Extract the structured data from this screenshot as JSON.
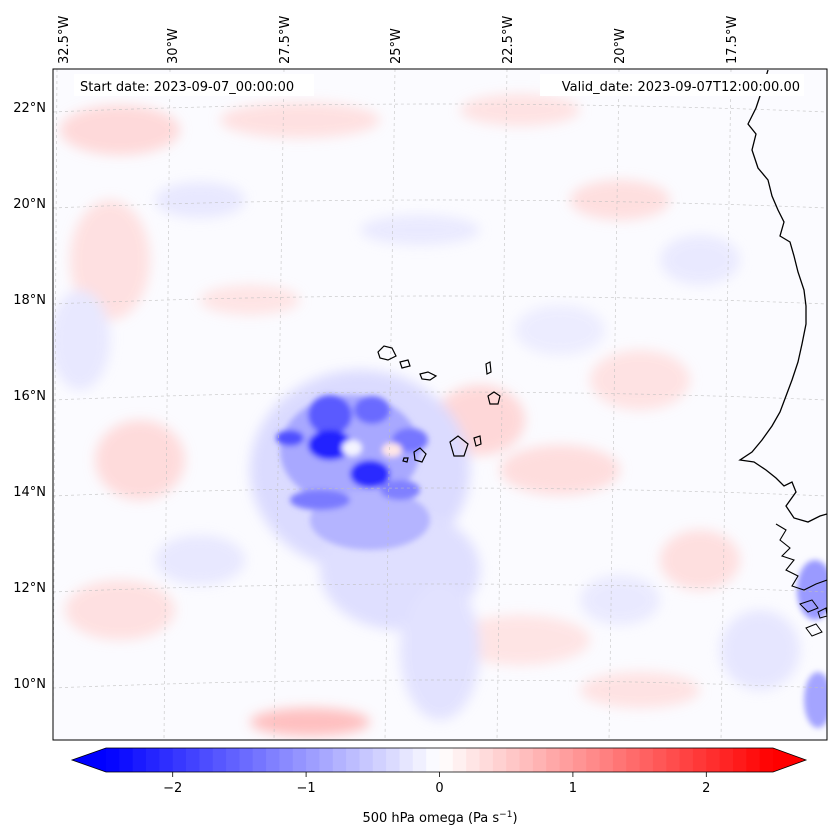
{
  "map": {
    "start_date": "Start date: 2023-09-07_00:00:00",
    "valid_date": "Valid_date: 2023-09-07T12:00:00.00",
    "lon_labels": [
      "32.5°W",
      "30°W",
      "27.5°W",
      "25°W",
      "22.5°W",
      "20°W",
      "17.5°W"
    ],
    "lat_labels": [
      "22°N",
      "20°N",
      "18°N",
      "16°N",
      "14°N",
      "12°N",
      "10°N"
    ],
    "field": "500 hPa omega",
    "features": [
      "Cabo Verde islands",
      "West African coastline"
    ]
  },
  "colorbar": {
    "label_prefix": "500 hPa omega (Pa s",
    "label_exp": "−1",
    "label_suffix": ")",
    "ticks": [
      "−2",
      "−1",
      "0",
      "1",
      "2"
    ],
    "tick_values": [
      -2,
      -1,
      0,
      1,
      2
    ],
    "range": [
      -2.5,
      2.5
    ],
    "colors": {
      "min": "#0000ff",
      "mid": "#ffffff",
      "max": "#ff0000"
    }
  }
}
